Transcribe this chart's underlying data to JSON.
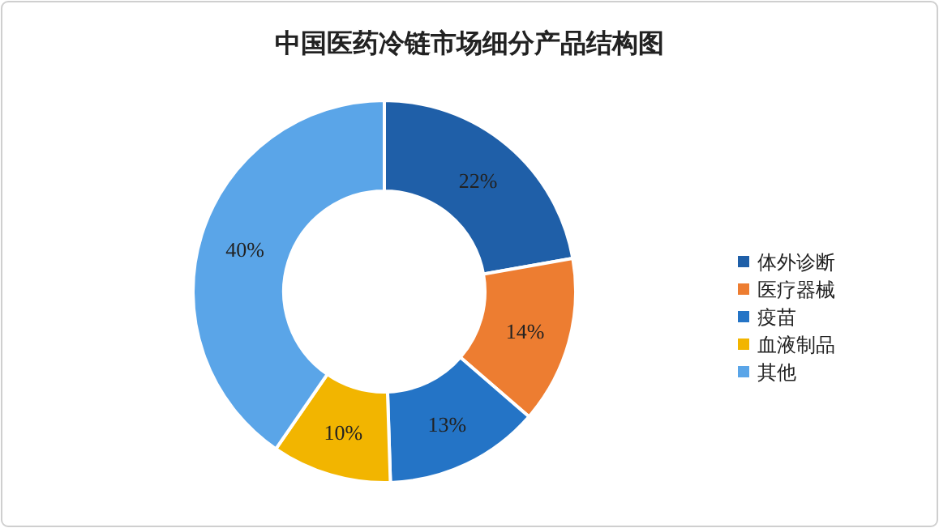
{
  "chart_data": {
    "type": "donut",
    "title": "中国医药冷链市场细分产品结构图",
    "categories": [
      "体外诊断",
      "医疗器械",
      "疫苗",
      "血液制品",
      "其他"
    ],
    "values": [
      22,
      14,
      13,
      10,
      40
    ],
    "value_labels": [
      "22%",
      "14%",
      "13%",
      "10%",
      "40%"
    ],
    "colors": [
      "#1f5fa8",
      "#ed7d31",
      "#2474c6",
      "#f2b500",
      "#5aa5e8"
    ],
    "legend": "right"
  }
}
